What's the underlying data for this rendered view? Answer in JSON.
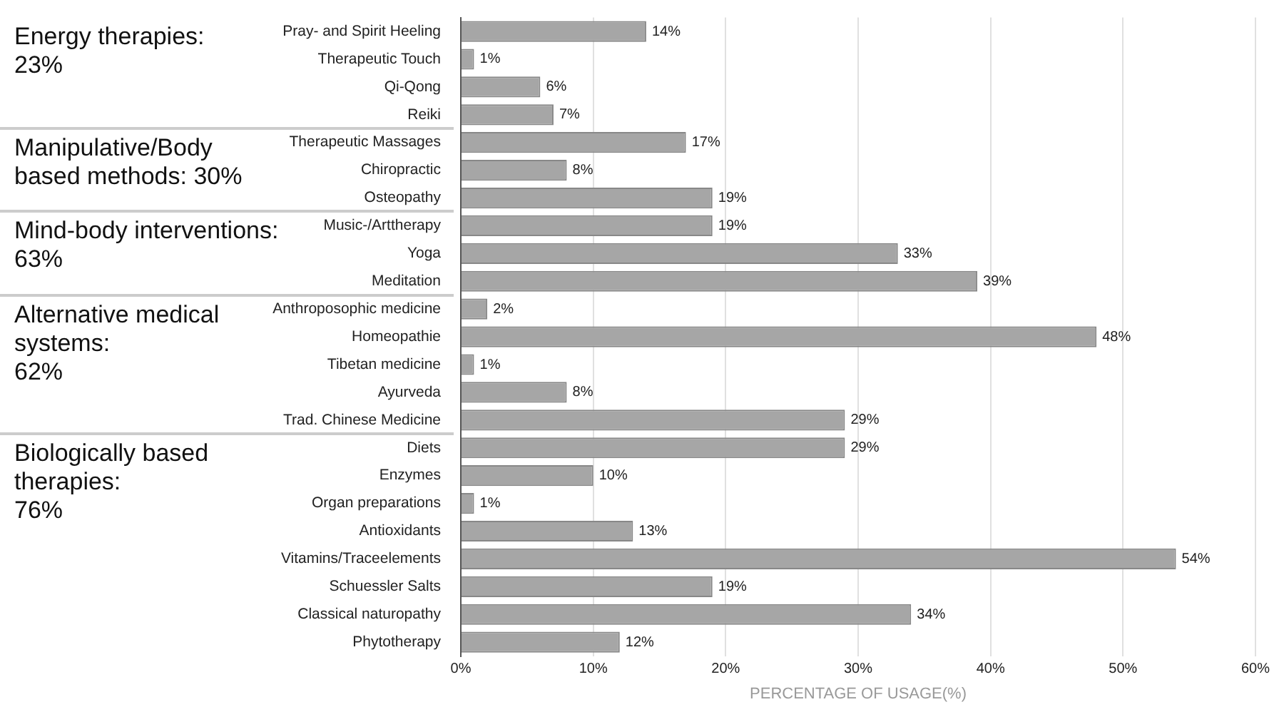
{
  "chart_data": {
    "type": "bar",
    "orientation": "horizontal",
    "xlabel": "PERCENTAGE OF USAGE(%)",
    "categories": [
      "Pray- and Spirit Heeling",
      "Therapeutic Touch",
      "Qi-Qong",
      "Reiki",
      "Therapeutic Massages",
      "Chiropractic",
      "Osteopathy",
      "Music-/Arttherapy",
      "Yoga",
      "Meditation",
      "Anthroposophic medicine",
      "Homeopathie",
      "Tibetan medicine",
      "Ayurveda",
      "Trad. Chinese Medicine",
      "Diets",
      "Enzymes",
      "Organ preparations",
      "Antioxidants",
      "Vitamins/Traceelements",
      "Schuessler Salts",
      "Classical naturopathy",
      "Phytotherapy"
    ],
    "values": [
      14,
      1,
      6,
      7,
      17,
      8,
      19,
      19,
      33,
      39,
      2,
      48,
      1,
      8,
      29,
      29,
      10,
      1,
      13,
      54,
      19,
      34,
      12
    ],
    "value_labels": [
      "14%",
      "1%",
      "6%",
      "7%",
      "17%",
      "8%",
      "19%",
      "19%",
      "33%",
      "39%",
      "2%",
      "48%",
      "1%",
      "8%",
      "29%",
      "29%",
      "10%",
      "1%",
      "13%",
      "54%",
      "19%",
      "34%",
      "12%"
    ],
    "color": "#a6a6a6",
    "xlim": [
      0,
      60
    ],
    "xticks": [
      {
        "value": 0,
        "label": "0%"
      },
      {
        "value": 10,
        "label": "10%"
      },
      {
        "value": 20,
        "label": "20%"
      },
      {
        "value": 30,
        "label": "30%"
      },
      {
        "value": 40,
        "label": "40%"
      },
      {
        "value": 50,
        "label": "50%"
      },
      {
        "value": 60,
        "label": "60%"
      }
    ],
    "grid": "x",
    "legend": false,
    "annotations": [
      "Energy therapies:\n23%",
      "Manipulative/Body\nbased methods: 30%",
      "Mind-body interventions:\n63%",
      "Alternative medical\nsystems:\n62%",
      "Biologically based\ntherapies:\n76%"
    ]
  }
}
